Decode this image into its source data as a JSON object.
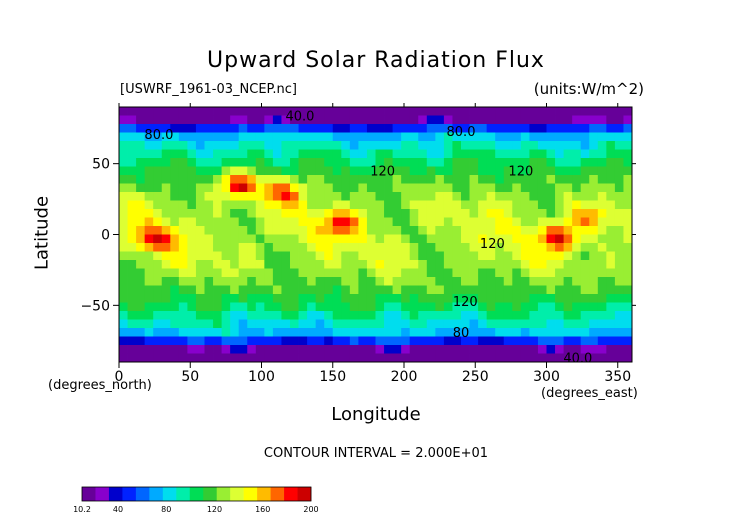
{
  "chart_data": {
    "type": "heatmap",
    "title": "Upward Solar Radiation Flux",
    "subtitle_left": "[USWRF_1961-03_NCEP.nc]",
    "subtitle_right": "(units:W/m^2)",
    "xlabel": "Longitude",
    "ylabel": "Latitude",
    "x_unit_label": "(degrees_east)",
    "y_unit_label": "(degrees_north)",
    "xlim": [
      0,
      360
    ],
    "ylim": [
      -90,
      90
    ],
    "x_ticks": [
      0,
      50,
      100,
      150,
      200,
      250,
      300,
      350
    ],
    "y_ticks": [
      -50,
      0,
      50
    ],
    "contour_interval_text": "CONTOUR INTERVAL = 2.000E+01",
    "contour_labels": [
      {
        "text": "40.0",
        "lon": 127,
        "lat": 83
      },
      {
        "text": "80.0",
        "lon": 28,
        "lat": 70
      },
      {
        "text": "80.0",
        "lon": 240,
        "lat": 72
      },
      {
        "text": "120",
        "lon": 185,
        "lat": 44
      },
      {
        "text": "120",
        "lon": 282,
        "lat": 44
      },
      {
        "text": "120",
        "lon": 262,
        "lat": -7
      },
      {
        "text": "120",
        "lon": 243,
        "lat": -48
      },
      {
        "text": "80",
        "lon": 240,
        "lat": -70
      },
      {
        "text": "40.0",
        "lon": 322,
        "lat": -88
      }
    ],
    "field_features": {
      "max": [
        {
          "lon": 25,
          "lat": -3,
          "value": 175
        },
        {
          "lon": 85,
          "lat": 35,
          "value": 195
        },
        {
          "lon": 115,
          "lat": 30,
          "value": 175
        },
        {
          "lon": 155,
          "lat": 8,
          "value": 170
        },
        {
          "lon": 310,
          "lat": -2,
          "value": 185
        },
        {
          "lon": 330,
          "lat": 12,
          "value": 165
        }
      ],
      "min": [
        {
          "lon": 180,
          "lat": 88,
          "value": 12
        },
        {
          "lon": 180,
          "lat": -88,
          "value": 40
        }
      ]
    },
    "colorbar": {
      "min": 10.2,
      "max": 200,
      "tick_labels": [
        "10.2",
        "40",
        "80",
        "120",
        "160",
        "200"
      ],
      "colors": [
        "#660099",
        "#8800cc",
        "#0000cc",
        "#0022ff",
        "#0066ff",
        "#00aaff",
        "#00ddee",
        "#00eeaa",
        "#00dd55",
        "#33cc33",
        "#99ee33",
        "#ddff33",
        "#ffff00",
        "#ffbb00",
        "#ff6600",
        "#ff0000",
        "#cc0000"
      ]
    }
  }
}
